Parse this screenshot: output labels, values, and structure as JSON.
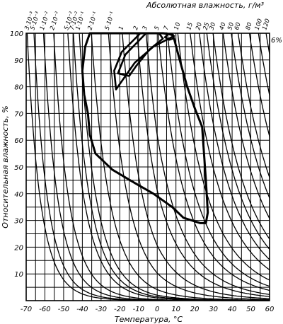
{
  "chart_data": {
    "type": "line",
    "title": "Абсолютная влажность, г/м³",
    "xlabel": "Температура, °С",
    "ylabel": "Относительная влажность, %",
    "xlim": [
      -70,
      60
    ],
    "ylim": [
      0,
      100
    ],
    "x_ticks": [
      "-70",
      "-60",
      "-50",
      "-40",
      "-30",
      "-20",
      "-10",
      "0",
      "10",
      "20",
      "30",
      "40",
      "50",
      "60"
    ],
    "y_ticks": [
      "10",
      "20",
      "30",
      "40",
      "50",
      "60",
      "70",
      "80",
      "90",
      "100"
    ],
    "grid": true,
    "absolute_humidity_labels": [
      "3·10⁻³",
      "5·10⁻³",
      "1·10⁻²",
      "2·10⁻²",
      "5·10⁻²",
      "7·10⁻²",
      "1·10⁻¹",
      "2·10⁻¹",
      "5·10⁻¹",
      "1",
      "2",
      "3",
      "5",
      "7",
      "10",
      "15",
      "20",
      "25",
      "30",
      "40",
      "50",
      "60",
      "80",
      "100",
      "120"
    ],
    "absolute_humidity_values": [
      0.003,
      0.005,
      0.01,
      0.02,
      0.05,
      0.07,
      0.1,
      0.2,
      0.5,
      1,
      2,
      3,
      5,
      7,
      10,
      15,
      20,
      25,
      30,
      40,
      50,
      60,
      80,
      100,
      120
    ],
    "annotation": "6%",
    "outer_contour": [
      {
        "t": -39,
        "rh": 77
      },
      {
        "t": -40,
        "rh": 86
      },
      {
        "t": -38.5,
        "rh": 95
      },
      {
        "t": -36,
        "rh": 100
      },
      {
        "t": 3,
        "rh": 100
      },
      {
        "t": 8,
        "rh": 99.5
      },
      {
        "t": 9,
        "rh": 98
      },
      {
        "t": 12,
        "rh": 90
      },
      {
        "t": 16,
        "rh": 80
      },
      {
        "t": 20,
        "rh": 72
      },
      {
        "t": 24,
        "rh": 65
      },
      {
        "t": 26,
        "rh": 45
      },
      {
        "t": 27,
        "rh": 33
      },
      {
        "t": 26,
        "rh": 29
      },
      {
        "t": 23,
        "rh": 29
      },
      {
        "t": 14,
        "rh": 31
      },
      {
        "t": 8,
        "rh": 35
      },
      {
        "t": -2,
        "rh": 40
      },
      {
        "t": -12,
        "rh": 44
      },
      {
        "t": -24,
        "rh": 49
      },
      {
        "t": -33,
        "rh": 55
      },
      {
        "t": -36,
        "rh": 62
      },
      {
        "t": -37,
        "rh": 70
      },
      {
        "t": -39,
        "rh": 77
      }
    ],
    "inner_contour": [
      {
        "t": -21,
        "rh": 85
      },
      {
        "t": -17,
        "rh": 92
      },
      {
        "t": -6,
        "rh": 100
      },
      {
        "t": 1,
        "rh": 100
      },
      {
        "t": 3,
        "rh": 98
      },
      {
        "t": -4,
        "rh": 94
      },
      {
        "t": -11,
        "rh": 88
      },
      {
        "t": -15,
        "rh": 84
      },
      {
        "t": -21,
        "rh": 85
      }
    ],
    "inner_contour_2": [
      {
        "t": -22,
        "rh": 79
      },
      {
        "t": -23,
        "rh": 86
      },
      {
        "t": -19,
        "rh": 93
      },
      {
        "t": -9,
        "rh": 100
      },
      {
        "t": 5,
        "rh": 100
      },
      {
        "t": 9,
        "rh": 99
      },
      {
        "t": -2,
        "rh": 95
      },
      {
        "t": -12,
        "rh": 89
      },
      {
        "t": -18,
        "rh": 83
      },
      {
        "t": -22,
        "rh": 79
      }
    ],
    "small_contour": [
      {
        "t": 4,
        "rh": 98.5
      },
      {
        "t": 6,
        "rh": 99.8
      },
      {
        "t": 8.5,
        "rh": 99.5
      },
      {
        "t": 8.5,
        "rh": 98
      },
      {
        "t": 6.5,
        "rh": 97.5
      },
      {
        "t": 4,
        "rh": 98.5
      }
    ]
  }
}
